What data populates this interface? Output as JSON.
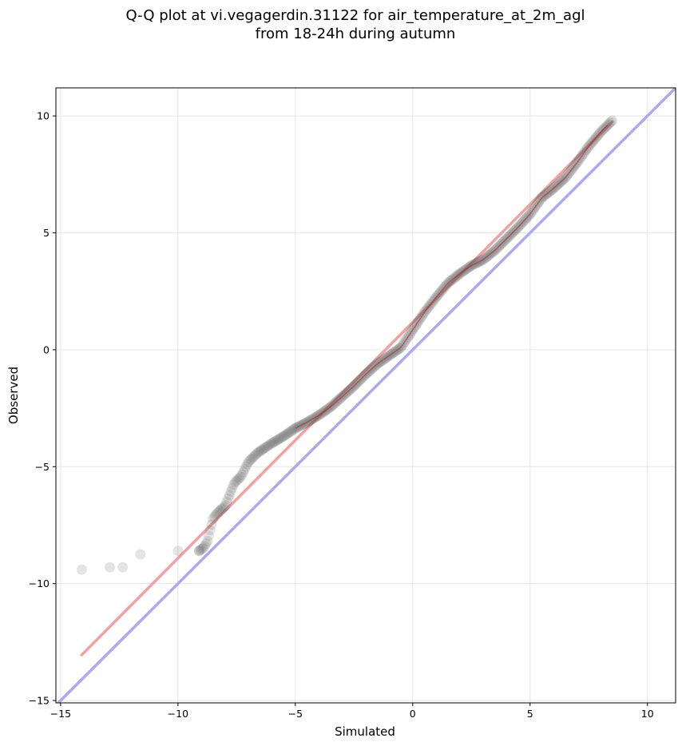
{
  "chart_data": {
    "type": "scatter",
    "title_lines": [
      "Q-Q plot at vi.vegagerdin.31122 for air_temperature_at_2m_agl",
      "from 18-24h during autumn"
    ],
    "xlabel": "Simulated",
    "ylabel": "Observed",
    "xlim": [
      -15.2,
      11.2
    ],
    "ylim": [
      -15.1,
      11.2
    ],
    "xticks": [
      -15,
      -10,
      -5,
      0,
      5,
      10
    ],
    "yticks": [
      -15,
      -10,
      -5,
      0,
      5,
      10
    ],
    "xtick_labels": [
      "−15",
      "−10",
      "−5",
      "0",
      "5",
      "10"
    ],
    "ytick_labels": [
      "−15",
      "−10",
      "−5",
      "0",
      "5",
      "10"
    ],
    "grid": true,
    "colors": {
      "points": "#555555",
      "identity_line": "#aaaaf4",
      "fit_line": "#f4a0a0",
      "dense_trace": "#b31b1b"
    },
    "identity_line": {
      "x": [
        -15.2,
        11.2
      ],
      "y": [
        -15.2,
        11.2
      ]
    },
    "fit_line": {
      "x": [
        -14.1,
        8.5
      ],
      "y": [
        -13.05,
        9.75
      ]
    },
    "quantile_knots": {
      "x": [
        -14.1,
        -12.9,
        -12.35,
        -11.6,
        -10.0,
        -9.1,
        -8.9,
        -8.75,
        -8.6,
        -8.5,
        -8.3,
        -8.0,
        -7.8,
        -7.6,
        -7.3,
        -7.0,
        -6.6,
        -6.0,
        -5.5,
        -5.0,
        -4.5,
        -4.0,
        -3.5,
        -3.0,
        -2.5,
        -2.0,
        -1.5,
        -1.0,
        -0.5,
        0.0,
        0.5,
        1.0,
        1.5,
        2.0,
        2.5,
        3.0,
        3.5,
        4.0,
        4.5,
        5.0,
        5.5,
        6.0,
        6.5,
        7.0,
        7.5,
        8.0,
        8.5
      ],
      "y": [
        -9.4,
        -9.3,
        -9.3,
        -8.75,
        -8.6,
        -8.6,
        -8.45,
        -8.2,
        -7.6,
        -7.2,
        -6.95,
        -6.7,
        -6.2,
        -5.7,
        -5.4,
        -4.8,
        -4.4,
        -4.0,
        -3.7,
        -3.35,
        -3.1,
        -2.8,
        -2.45,
        -2.0,
        -1.55,
        -1.05,
        -0.6,
        -0.25,
        0.1,
        0.85,
        1.6,
        2.25,
        2.85,
        3.25,
        3.6,
        3.85,
        4.25,
        4.75,
        5.25,
        5.8,
        6.5,
        6.9,
        7.35,
        8.0,
        8.7,
        9.3,
        9.8
      ]
    },
    "n_points": 300
  }
}
